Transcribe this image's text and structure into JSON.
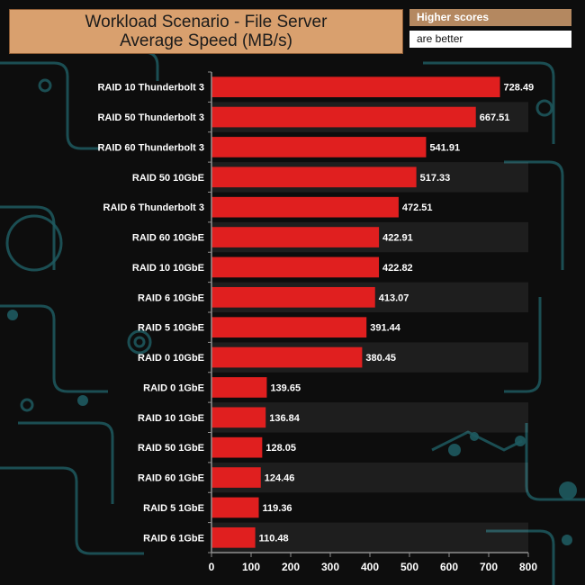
{
  "title": {
    "line1": "Workload Scenario - File Server",
    "line2": "Average Speed (MB/s)"
  },
  "note": {
    "line1": "Higher scores",
    "line2": "are better"
  },
  "colors": {
    "bar": "#e01f1f",
    "title_bg": "#d9a06e",
    "note_bg": "#b48860",
    "label_text": "#ffffff",
    "background": "#0d0d0d",
    "circuit": "#1e5a60"
  },
  "chart_data": {
    "type": "bar",
    "orientation": "horizontal",
    "categories": [
      "RAID 10 Thunderbolt 3",
      "RAID 50 Thunderbolt 3",
      "RAID 60 Thunderbolt 3",
      "RAID 50 10GbE",
      "RAID 6 Thunderbolt 3",
      "RAID 60 10GbE",
      "RAID 10 10GbE",
      "RAID 6 10GbE",
      "RAID 5 10GbE",
      "RAID 0 10GbE",
      "RAID 0 1GbE",
      "RAID 10 1GbE",
      "RAID 50 1GbE",
      "RAID 60 1GbE",
      "RAID 5 1GbE",
      "RAID 6 1GbE"
    ],
    "values": [
      728.49,
      667.51,
      541.91,
      517.33,
      472.51,
      422.91,
      422.82,
      413.07,
      391.44,
      380.45,
      139.65,
      136.84,
      128.05,
      124.46,
      119.36,
      110.48
    ],
    "data_labels": [
      "728.49",
      "667.51",
      "541.91",
      "517.33",
      "472.51",
      "422.91",
      "422.82",
      "413.07",
      "391.44",
      "380.45",
      "139.65",
      "136.84",
      "128.05",
      "124.46",
      "119.36",
      "110.48"
    ],
    "xlim": [
      0,
      800
    ],
    "xticks": [
      0,
      100,
      200,
      300,
      400,
      500,
      600,
      700,
      800
    ],
    "xtick_labels": [
      "0",
      "100",
      "200",
      "300",
      "400",
      "500",
      "600",
      "700",
      "800"
    ],
    "grid": true,
    "title": "Workload Scenario - File Server Average Speed (MB/s)"
  }
}
